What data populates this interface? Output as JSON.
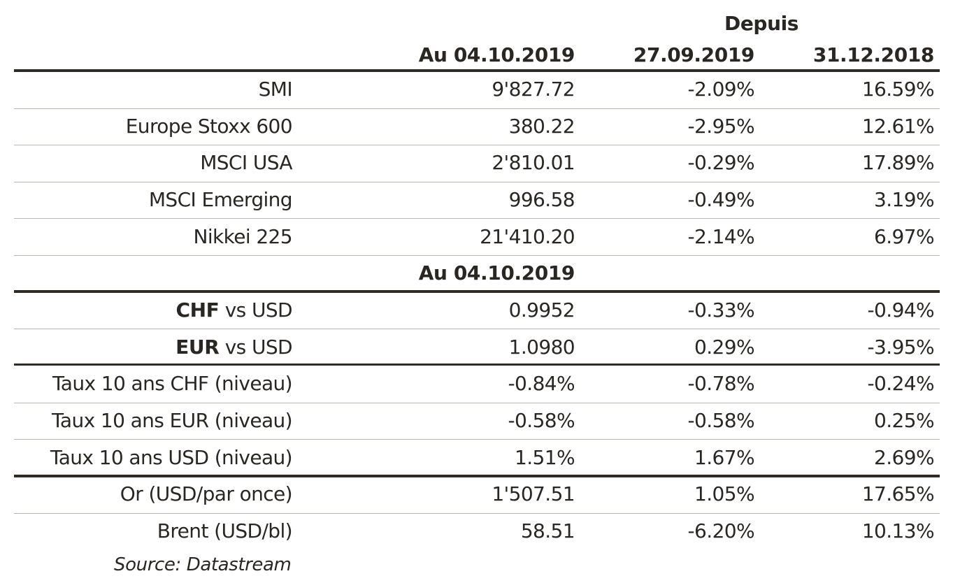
{
  "header": {
    "depuis": "Depuis",
    "col_value": "Au 04.10.2019",
    "col_week": "27.09.2019",
    "col_ytd": "31.12.2018"
  },
  "section_label": "Au 04.10.2019",
  "rows": [
    {
      "label": "SMI",
      "value": "9'827.72",
      "week": "-2.09%",
      "ytd": "16.59%"
    },
    {
      "label": "Europe Stoxx 600",
      "value": "380.22",
      "week": "-2.95%",
      "ytd": "12.61%"
    },
    {
      "label": "MSCI USA",
      "value": "2'810.01",
      "week": "-0.29%",
      "ytd": "17.89%"
    },
    {
      "label": "MSCI Emerging",
      "value": "996.58",
      "week": "-0.49%",
      "ytd": "3.19%"
    },
    {
      "label": "Nikkei 225",
      "value": "21'410.20",
      "week": "-2.14%",
      "ytd": "6.97%"
    },
    {
      "label_bold": "CHF",
      "label_rest": " vs USD",
      "value": "0.9952",
      "week": "-0.33%",
      "ytd": "-0.94%"
    },
    {
      "label_bold": "EUR",
      "label_rest": " vs USD",
      "value": "1.0980",
      "week": "0.29%",
      "ytd": "-3.95%"
    },
    {
      "label": "Taux 10 ans CHF (niveau)",
      "value": "-0.84%",
      "week": "-0.78%",
      "ytd": "-0.24%"
    },
    {
      "label": "Taux 10 ans EUR (niveau)",
      "value": "-0.58%",
      "week": "-0.58%",
      "ytd": "0.25%"
    },
    {
      "label": "Taux 10 ans USD (niveau)",
      "value": "1.51%",
      "week": "1.67%",
      "ytd": "2.69%"
    },
    {
      "label": "Or (USD/par once)",
      "value": "1'507.51",
      "week": "1.05%",
      "ytd": "17.65%"
    },
    {
      "label": "Brent (USD/bl)",
      "value": "58.51",
      "week": "-6.20%",
      "ytd": "10.13%"
    }
  ],
  "source": "Source: Datastream"
}
